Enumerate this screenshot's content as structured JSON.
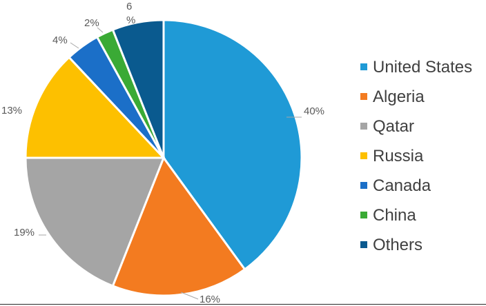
{
  "chart_data": {
    "type": "pie",
    "title": "",
    "categories": [
      "United States",
      "Algeria",
      "Qatar",
      "Russia",
      "Canada",
      "China",
      "Others"
    ],
    "values": [
      40,
      16,
      19,
      13,
      4,
      2,
      6
    ],
    "unit": "%",
    "labels": [
      "40%",
      "16%",
      "19%",
      "13%",
      "4%",
      "2%",
      "6\n%"
    ],
    "colors": [
      "#1f9ad6",
      "#f37b20",
      "#a5a5a5",
      "#fdc000",
      "#1b6fc8",
      "#3aaa35",
      "#0a5a8f"
    ],
    "legend_position": "right",
    "start_angle_degrees": 0,
    "direction": "clockwise"
  }
}
